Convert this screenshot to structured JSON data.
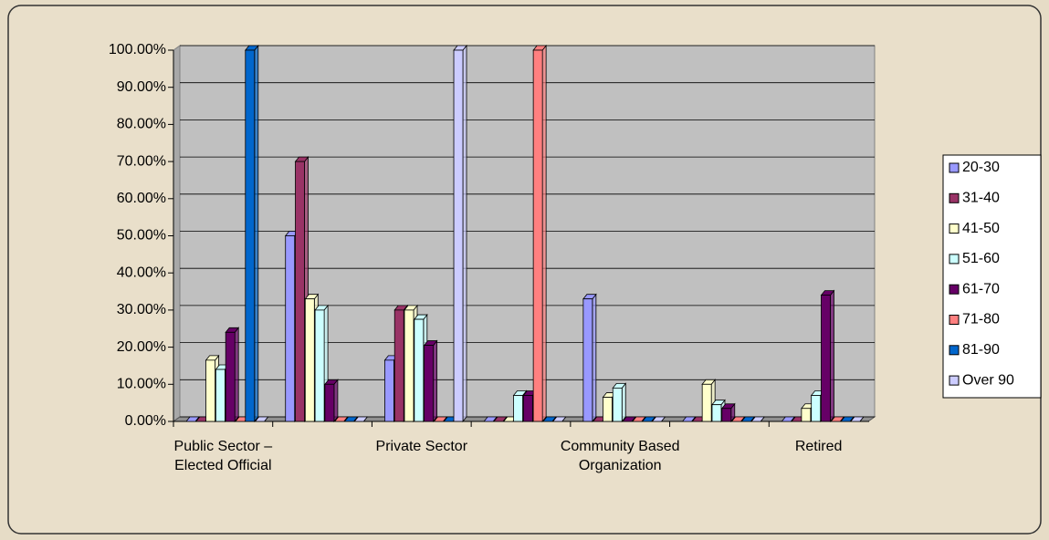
{
  "chart_data": {
    "type": "bar",
    "categories": [
      "Public Sector –Elected Official",
      null,
      "Private Sector",
      null,
      "Community Based Organization",
      null,
      "Retired"
    ],
    "series": [
      {
        "name": "20-30",
        "color": "#9999ff",
        "values": [
          0,
          50,
          16.5,
          0,
          33,
          0,
          0
        ]
      },
      {
        "name": "31-40",
        "color": "#993366",
        "values": [
          0,
          70,
          30,
          0,
          0,
          0,
          0
        ]
      },
      {
        "name": "41-50",
        "color": "#ffffcc",
        "values": [
          16.5,
          33,
          30,
          0,
          6.5,
          10,
          3.5
        ]
      },
      {
        "name": "51-60",
        "color": "#ccffff",
        "values": [
          14,
          30,
          27.5,
          7,
          9,
          4.5,
          7
        ]
      },
      {
        "name": "61-70",
        "color": "#660066",
        "values": [
          24,
          10,
          20.5,
          7,
          0,
          3.5,
          34
        ]
      },
      {
        "name": "71-80",
        "color": "#ff8080",
        "values": [
          0,
          0,
          0,
          100,
          0,
          0,
          0
        ]
      },
      {
        "name": "81-90",
        "color": "#0066cc",
        "values": [
          100,
          0,
          0,
          0,
          0,
          0,
          0
        ]
      },
      {
        "name": "Over 90",
        "color": "#ccccff",
        "values": [
          0,
          0,
          100,
          0,
          0,
          0,
          0
        ]
      }
    ],
    "ylim": [
      0,
      100
    ],
    "yticks": [
      {
        "value": 0,
        "label": "0.00%"
      },
      {
        "value": 10,
        "label": "10.00%"
      },
      {
        "value": 20,
        "label": "20.00%"
      },
      {
        "value": 30,
        "label": "30.00%"
      },
      {
        "value": 40,
        "label": "40.00%"
      },
      {
        "value": 50,
        "label": "50.00%"
      },
      {
        "value": 60,
        "label": "60.00%"
      },
      {
        "value": 70,
        "label": "70.00%"
      },
      {
        "value": 80,
        "label": "80.00%"
      },
      {
        "value": 90,
        "label": "90.00%"
      },
      {
        "value": 100,
        "label": "100.00%"
      }
    ],
    "grid": true,
    "legend": "right"
  }
}
